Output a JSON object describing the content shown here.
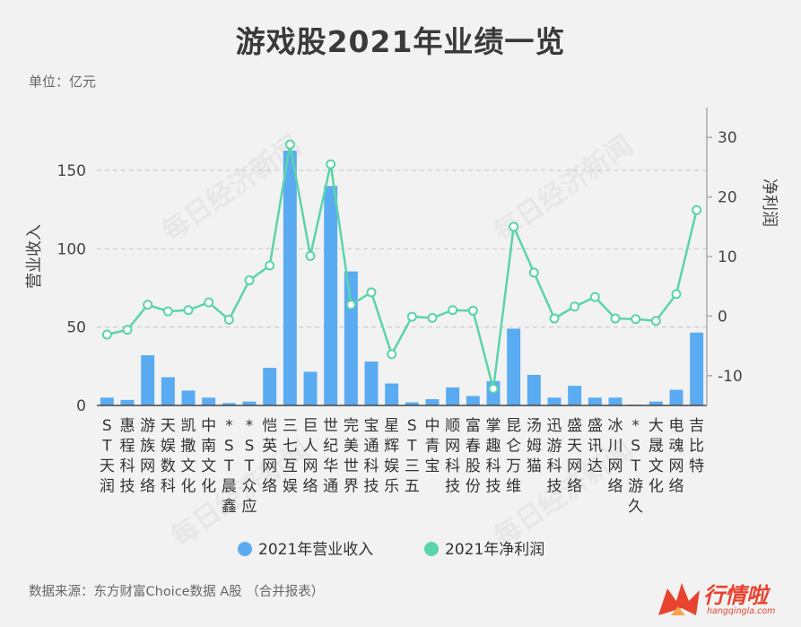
{
  "title": "游戏股2021年业绩一览",
  "unit_label": "单位：亿元",
  "source_note": "数据来源：东方财富Choice数据 A股 （合并报表）",
  "watermark": "每日经济新闻",
  "logo": {
    "main": "行情啦",
    "sub": "hangqingla.com",
    "color": "#e8432f"
  },
  "chart_data": {
    "type": "bar+line",
    "categories": [
      "ST天润",
      "惠程科技",
      "游族网络",
      "天娱数科",
      "凯撒文化",
      "中南文化",
      "*ST晨鑫",
      "*ST众应",
      "恺英网络",
      "三七互娱",
      "巨人网络",
      "世纪华通",
      "完美世界",
      "宝通科技",
      "星辉娱乐",
      "ST三五",
      "中青宝",
      "顺网科技",
      "富春股份",
      "掌趣科技",
      "昆仑万维",
      "汤姆猫",
      "迅游科技",
      "盛天网络",
      "盛讯达",
      "冰川网络",
      "*ST游久",
      "大晟文化",
      "电魂网络",
      "吉比特"
    ],
    "ylabel": "营业收入",
    "y2label": "净利润",
    "ylim": [
      0,
      190
    ],
    "y2lim": [
      -15,
      35
    ],
    "yticks": [
      0,
      50,
      100,
      150
    ],
    "y2ticks": [
      -10,
      0,
      10,
      20,
      30
    ],
    "grid": true,
    "legend_position": "bottom",
    "series": [
      {
        "name": "2021年营业收入",
        "kind": "bar",
        "color": "#5aabf1",
        "values": [
          5,
          3.5,
          32,
          18,
          9.5,
          5,
          1.5,
          2.5,
          24,
          162.5,
          21.5,
          140,
          85.5,
          28,
          14,
          2,
          4,
          11.5,
          6,
          15.5,
          49,
          19.5,
          5,
          12.5,
          5,
          5,
          0.5,
          2.5,
          10,
          46.5
        ]
      },
      {
        "name": "2021年净利润",
        "kind": "line",
        "color": "#5bd4a9",
        "values": [
          -3.1,
          -2.3,
          1.9,
          0.8,
          1.0,
          2.3,
          -0.6,
          6.0,
          8.5,
          28.8,
          10.1,
          25.5,
          1.9,
          4.0,
          -6.4,
          -0.1,
          -0.3,
          1.0,
          0.9,
          -12.2,
          15.0,
          7.3,
          -0.4,
          1.6,
          3.2,
          -0.4,
          -0.5,
          -0.8,
          3.7,
          17.8
        ]
      }
    ]
  }
}
